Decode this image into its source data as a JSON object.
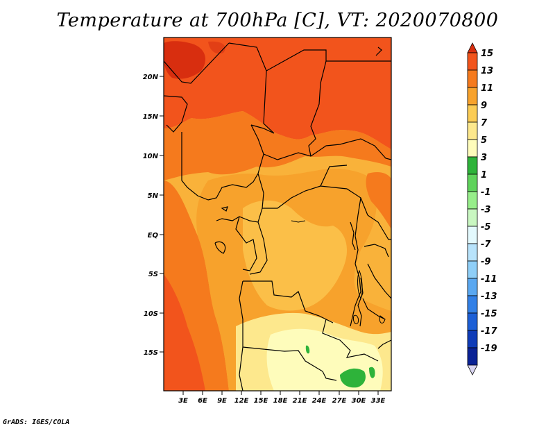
{
  "title": "Temperature at 700hPa [C], VT: 2020070800",
  "credit": "GrADS: IGES/COLA",
  "map": {
    "lat_labels": [
      "20N",
      "15N",
      "10N",
      "5N",
      "EQ",
      "5S",
      "10S",
      "15S"
    ],
    "lon_labels": [
      "3E",
      "6E",
      "9E",
      "12E",
      "15E",
      "18E",
      "21E",
      "24E",
      "27E",
      "30E",
      "33E"
    ],
    "background_color": "#f9b23a"
  },
  "colorbar": {
    "labels": [
      "15",
      "13",
      "11",
      "9",
      "7",
      "5",
      "3",
      "1",
      "-1",
      "-3",
      "-5",
      "-7",
      "-9",
      "-11",
      "-13",
      "-15",
      "-17",
      "-19"
    ],
    "colors": [
      "#d82e0f",
      "#f2541c",
      "#f57a1d",
      "#f7a22c",
      "#fbcc55",
      "#fde88d",
      "#fefcbb",
      "#2eb33a",
      "#5fd35b",
      "#97ee8a",
      "#c9f7c1",
      "#e3f9fd",
      "#b8e3fb",
      "#8fcff8",
      "#5aa8f1",
      "#3280e6",
      "#1c5fd6",
      "#0f3cb8",
      "#0a2295",
      "#050a57"
    ]
  }
}
